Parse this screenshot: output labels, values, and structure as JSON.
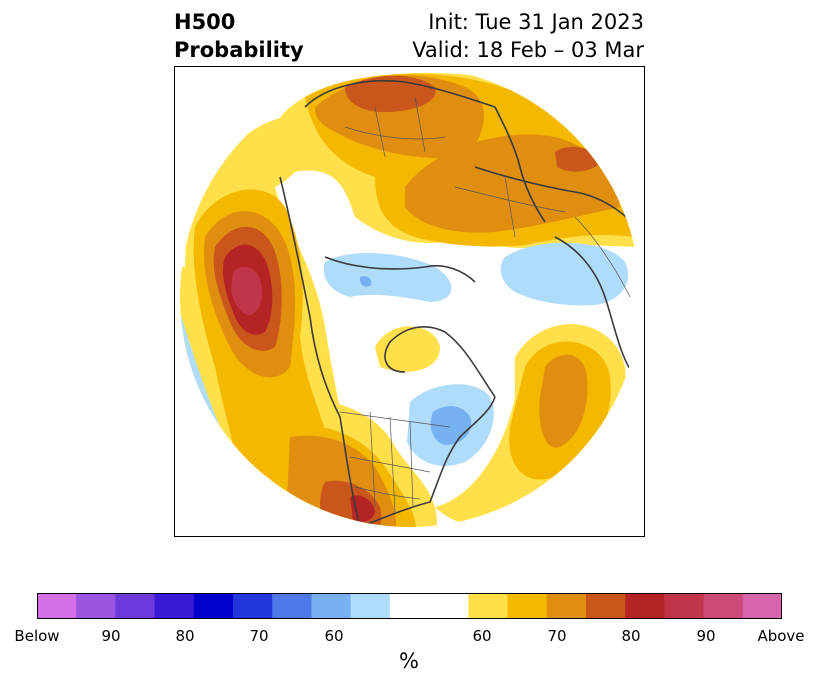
{
  "title": {
    "left_line1": "H500",
    "left_line2": "Probability",
    "right_line1": "Init: Tue 31 Jan 2023",
    "right_line2": "Valid: 18 Feb – 03 Mar"
  },
  "colorbar": {
    "unit": "%",
    "tick_labels": [
      "Below",
      "90",
      "80",
      "70",
      "60",
      "60",
      "70",
      "80",
      "90",
      "Above"
    ],
    "colors": [
      "#d56fe8",
      "#9b55e0",
      "#6b39dc",
      "#3a1bd5",
      "#0000cd",
      "#2337dc",
      "#4f78e8",
      "#76b1f2",
      "#afdcfb",
      "#ffffff",
      "#ffe04a",
      "#f5b800",
      "#e08e10",
      "#c9561a",
      "#b52424",
      "#c1354a",
      "#cc4a78",
      "#d864ad",
      "#e379dc"
    ]
  },
  "map": {
    "palette": {
      "above_50": "#ffe04a",
      "above_60": "#f5b800",
      "above_65": "#e08e10",
      "above_70": "#c9561a",
      "above_75": "#b52424",
      "above_80": "#c1354a",
      "below_50": "#afdcfb",
      "below_60": "#76b1f2",
      "coast": "#3a3a3a",
      "border": "#555555"
    }
  }
}
